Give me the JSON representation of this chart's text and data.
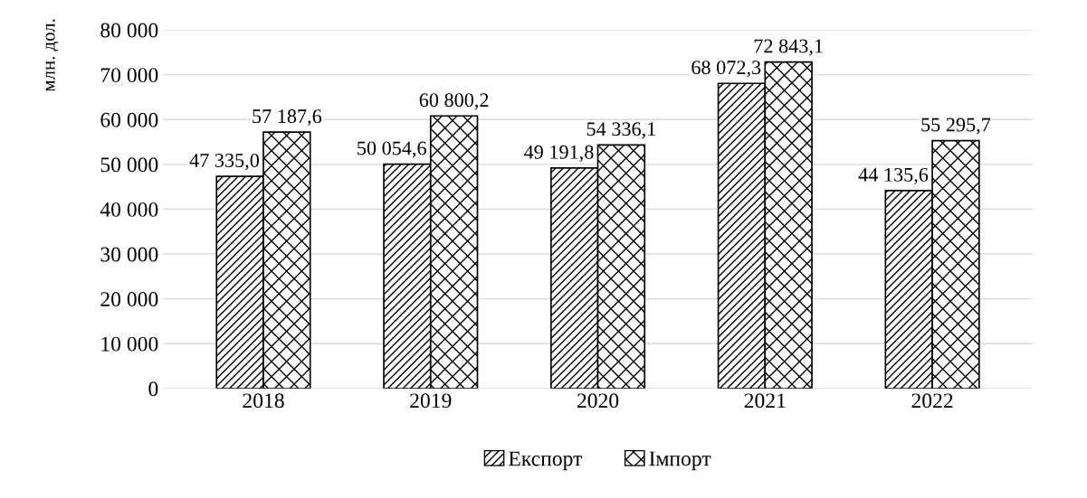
{
  "chart_data": {
    "type": "bar",
    "ylabel": "млн. дол.",
    "categories": [
      "2018",
      "2019",
      "2020",
      "2021",
      "2022"
    ],
    "series": [
      {
        "name": "Експорт",
        "color": "#000000",
        "values": [
          47335.0,
          50054.6,
          49191.8,
          68072.3,
          44135.6
        ],
        "value_labels": [
          "47 335,0",
          "50 054,6",
          "49 191,8",
          "68 072,3",
          "44 135,6"
        ]
      },
      {
        "name": "Імпорт",
        "color": "#000000",
        "values": [
          57187.6,
          60800.2,
          54336.1,
          72843.1,
          55295.7
        ],
        "value_labels": [
          "57 187,6",
          "60 800,2",
          "54 336,1",
          "72 843,1",
          "55 295,7"
        ]
      }
    ],
    "ylim": [
      0,
      80000
    ],
    "yticks": [
      {
        "value": 0,
        "label": "0"
      },
      {
        "value": 10000,
        "label": "10 000"
      },
      {
        "value": 20000,
        "label": "20 000"
      },
      {
        "value": 30000,
        "label": "30 000"
      },
      {
        "value": 40000,
        "label": "40 000"
      },
      {
        "value": 50000,
        "label": "50 000"
      },
      {
        "value": 60000,
        "label": "60 000"
      },
      {
        "value": 70000,
        "label": "70 000"
      },
      {
        "value": 80000,
        "label": "80 000"
      }
    ],
    "grid": "y",
    "legend": "bottom"
  }
}
